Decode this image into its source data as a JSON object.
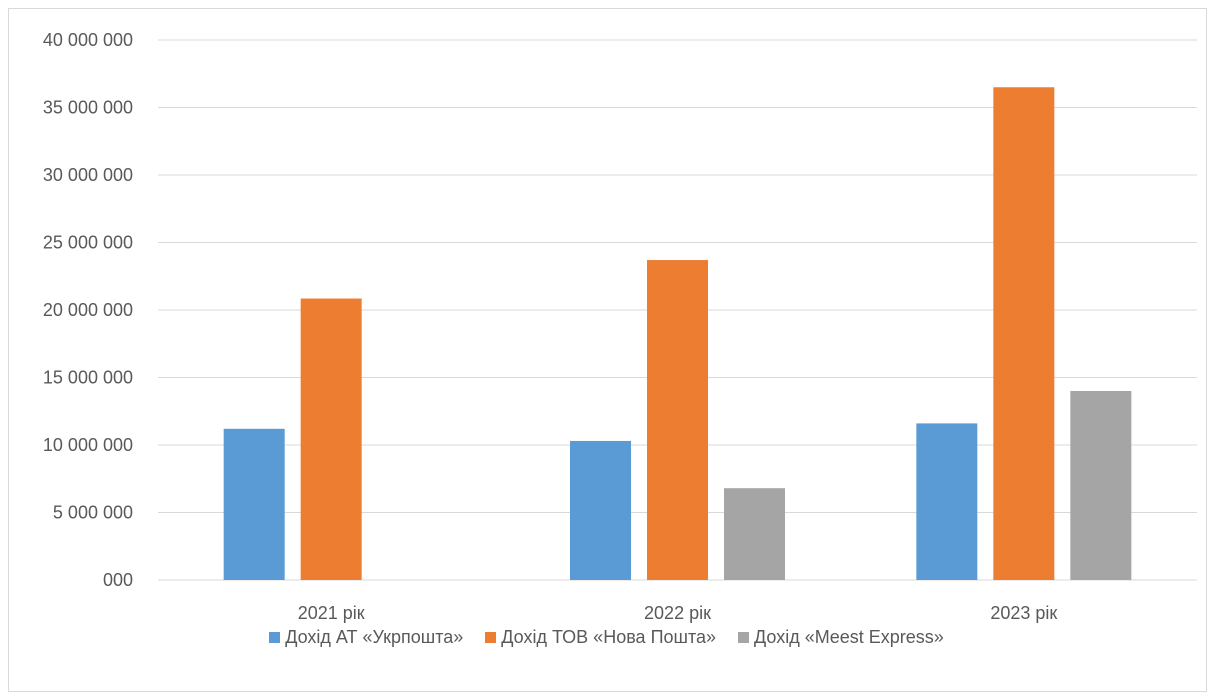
{
  "chart_data": {
    "type": "bar",
    "categories": [
      "2021 рік",
      "2022 рік",
      "2023 рік"
    ],
    "series": [
      {
        "name": "Дохід АТ «Укрпошта»",
        "color": "#5b9bd5",
        "values": [
          11200000,
          10300000,
          11600000
        ]
      },
      {
        "name": "Дохід ТОВ «Нова Пошта»",
        "color": "#ed7d31",
        "values": [
          20850000,
          23700000,
          36500000
        ]
      },
      {
        "name": "Дохід «Meest Express»",
        "color": "#a5a5a5",
        "values": [
          null,
          6800000,
          14000000
        ]
      }
    ],
    "y_ticks": [
      {
        "value": 0,
        "label": "000"
      },
      {
        "value": 5000000,
        "label": "5 000 000"
      },
      {
        "value": 10000000,
        "label": "10 000 000"
      },
      {
        "value": 15000000,
        "label": "15 000 000"
      },
      {
        "value": 20000000,
        "label": "20 000 000"
      },
      {
        "value": 25000000,
        "label": "25 000 000"
      },
      {
        "value": 30000000,
        "label": "30 000 000"
      },
      {
        "value": 35000000,
        "label": "35 000 000"
      },
      {
        "value": 40000000,
        "label": "40 000 000"
      }
    ],
    "ylim": [
      0,
      40000000
    ],
    "grid": true,
    "legend_position": "bottom",
    "title": "",
    "xlabel": "",
    "ylabel": ""
  }
}
